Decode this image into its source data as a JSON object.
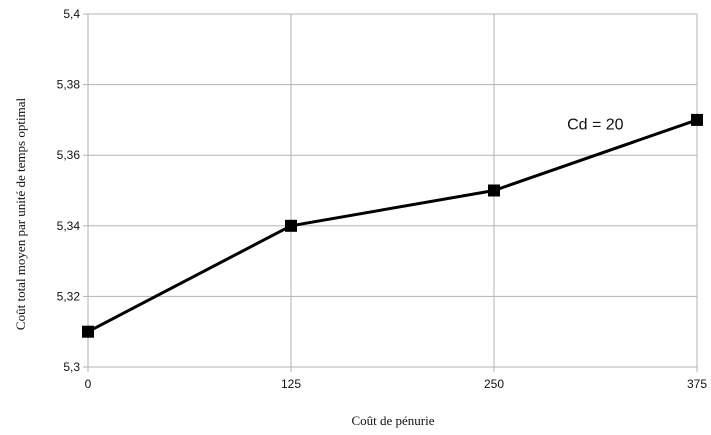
{
  "chart_data": {
    "type": "line",
    "title": "",
    "xlabel": "Coût de pénurie",
    "ylabel": "Coût total moyen par unité de temps optimal",
    "x": [
      0,
      125,
      250,
      375
    ],
    "x_tick_labels": [
      "0",
      "125",
      "250",
      "375"
    ],
    "ylim": [
      5.3,
      5.4
    ],
    "y_ticks": [
      5.3,
      5.32,
      5.34,
      5.36,
      5.38,
      5.4
    ],
    "y_tick_labels": [
      "5,3",
      "5,32",
      "5,34",
      "5,36",
      "5,38",
      "5,4"
    ],
    "grid": true,
    "series": [
      {
        "values": [
          5.31,
          5.34,
          5.35,
          5.37
        ],
        "color": "#000000",
        "marker": "square"
      }
    ],
    "annotations": [
      {
        "text": "Cd = 20",
        "x": 295,
        "y": 5.369
      }
    ]
  }
}
